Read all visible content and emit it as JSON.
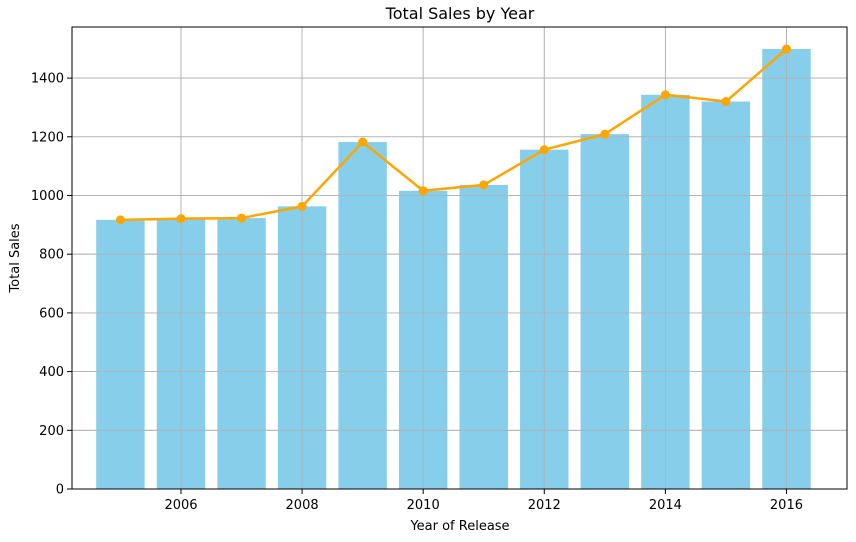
{
  "chart_data": {
    "type": "bar",
    "title": "Total Sales by Year",
    "xlabel": "Year of Release",
    "ylabel": "Total Sales",
    "x": [
      2005,
      2006,
      2007,
      2008,
      2009,
      2010,
      2011,
      2012,
      2013,
      2014,
      2015,
      2016
    ],
    "values": [
      917,
      921,
      923,
      963,
      1182,
      1016,
      1036,
      1156,
      1209,
      1343,
      1320,
      1499
    ],
    "line_overlay": {
      "values": [
        917,
        921,
        923,
        963,
        1182,
        1016,
        1036,
        1156,
        1209,
        1343,
        1320,
        1499
      ],
      "marker": "circle"
    },
    "xticks": [
      2006,
      2008,
      2010,
      2012,
      2014,
      2016
    ],
    "yticks": [
      0,
      200,
      400,
      600,
      800,
      1000,
      1200,
      1400
    ],
    "xlim": [
      2004.2,
      2017.0
    ],
    "ylim": [
      0,
      1574
    ],
    "grid": true,
    "colors": {
      "bar": "#87ceeb",
      "line": "#ffa500",
      "grid": "#b0b0b0"
    }
  }
}
